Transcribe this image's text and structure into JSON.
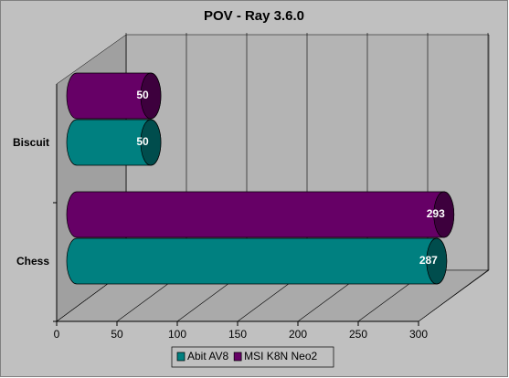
{
  "chart_data": {
    "type": "bar3d",
    "orientation": "horizontal",
    "title": "POV - Ray 3.6.0",
    "categories": [
      "Chess",
      "Biscuit"
    ],
    "series": [
      {
        "name": "Abit AV8",
        "color": "#008080",
        "values": [
          287,
          50
        ]
      },
      {
        "name": "MSI K8N Neo2",
        "color": "#660066",
        "values": [
          293,
          50
        ]
      }
    ],
    "xlim": [
      0,
      300
    ],
    "xticks": [
      0,
      50,
      100,
      150,
      200,
      250,
      300
    ],
    "grid": true,
    "legend": "bottom"
  }
}
